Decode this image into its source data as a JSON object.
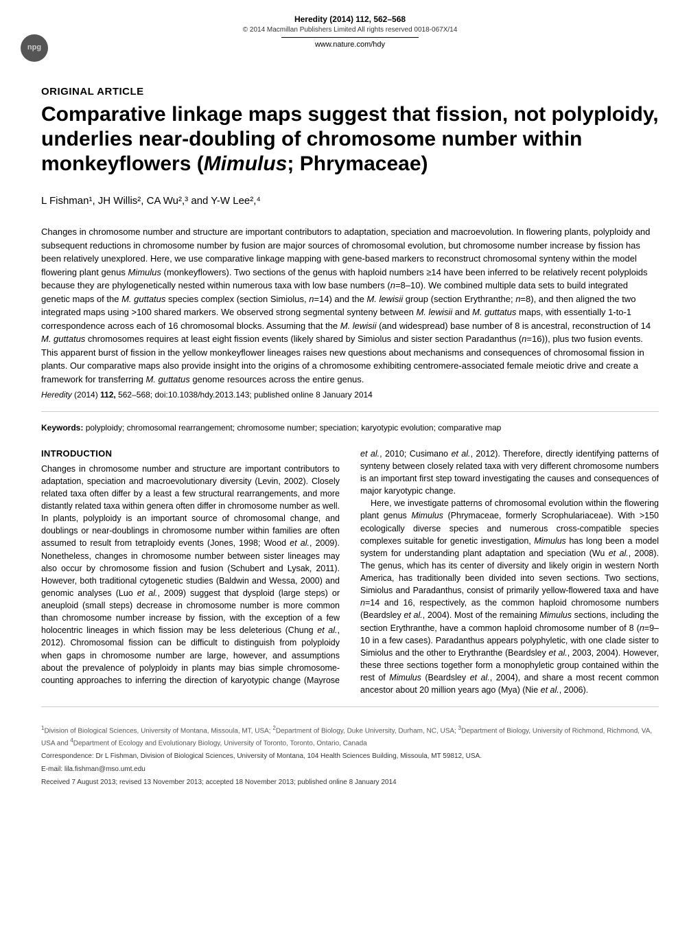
{
  "header": {
    "journal_ref": "Heredity (2014) 112, 562–568",
    "copyright": "© 2014 Macmillan Publishers Limited   All rights reserved 0018-067X/14",
    "website": "www.nature.com/hdy",
    "badge": "npg"
  },
  "article": {
    "type": "ORIGINAL ARTICLE",
    "title_html": "Comparative linkage maps suggest that fission, not polyploidy, underlies near-doubling of chromosome number within monkeyflowers (<em>Mimulus</em>; Phrymaceae)",
    "authors": "L Fishman¹, JH Willis², CA Wu²,³ and Y-W Lee²,⁴",
    "abstract_html": "Changes in chromosome number and structure are important contributors to adaptation, speciation and macroevolution. In flowering plants, polyploidy and subsequent reductions in chromosome number by fusion are major sources of chromosomal evolution, but chromosome number increase by fission has been relatively unexplored. Here, we use comparative linkage mapping with gene-based markers to reconstruct chromosomal synteny within the model flowering plant genus <em>Mimulus</em> (monkeyflowers). Two sections of the genus with haploid numbers ≥14 have been inferred to be relatively recent polyploids because they are phylogenetically nested within numerous taxa with low base numbers (<em>n</em>=8–10). We combined multiple data sets to build integrated genetic maps of the <em>M. guttatus</em> species complex (section Simiolus, <em>n</em>=14) and the <em>M. lewisii</em> group (section Erythranthe; <em>n</em>=8), and then aligned the two integrated maps using >100 shared markers. We observed strong segmental synteny between <em>M. lewisii</em> and <em>M. guttatus</em> maps, with essentially 1-to-1 correspondence across each of 16 chromosomal blocks. Assuming that the <em>M. lewisii</em> (and widespread) base number of 8 is ancestral, reconstruction of 14 <em>M. guttatus</em> chromosomes requires at least eight fission events (likely shared by Simiolus and sister section Paradanthus (<em>n</em>=16)), plus two fusion events. This apparent burst of fission in the yellow monkeyflower lineages raises new questions about mechanisms and consequences of chromosomal fission in plants. Our comparative maps also provide insight into the origins of a chromosome exhibiting centromere-associated female meiotic drive and create a framework for transferring <em>M. guttatus</em> genome resources across the entire genus.",
    "citation_html": "<em>Heredity</em> (2014) <strong>112,</strong> 562–568; doi:10.1038/hdy.2013.143; published online 8 January 2014",
    "keywords_label": "Keywords:",
    "keywords": " polyploidy; chromosomal rearrangement; chromosome number; speciation; karyotypic evolution; comparative map"
  },
  "introduction": {
    "heading": "INTRODUCTION",
    "p1_html": "Changes in chromosome number and structure are important contributors to adaptation, speciation and macroevolutionary diversity (Levin, 2002). Closely related taxa often differ by a least a few structural rearrangements, and more distantly related taxa within genera often differ in chromosome number as well. In plants, polyploidy is an important source of chromosomal change, and doublings or near-doublings in chromosome number within families are often assumed to result from tetraploidy events (Jones, 1998; Wood <em>et al.</em>, 2009). Nonetheless, changes in chromosome number between sister lineages may also occur by chromosome fission and fusion (Schubert and Lysak, 2011). However, both traditional cytogenetic studies (Baldwin and Wessa, 2000) and genomic analyses (Luo <em>et al.</em>, 2009) suggest that dysploid (large steps) or aneuploid (small steps) decrease in chromosome number is more common than chromosome number increase by fission, with the exception of a few holocentric lineages in which fission may be less deleterious (Chung <em>et al.</em>, 2012). Chromosomal fission can be difficult to distinguish from polyploidy when gaps in chromosome number are large, however, and assumptions about the prevalence of polyploidy in plants may bias simple chromosome-counting approaches to inferring the direction of karyotypic change (Mayrose <em>et al.</em>, 2010; Cusimano <em>et al.</em>, 2012). Therefore, directly identifying patterns of synteny between closely related taxa with very different chromosome numbers is an important first step toward investigating the causes and consequences of major karyotypic change.",
    "p2_html": "Here, we investigate patterns of chromosomal evolution within the flowering plant genus <em>Mimulus</em> (Phrymaceae, formerly Scrophulariaceae). With >150 ecologically diverse species and numerous cross-compatible species complexes suitable for genetic investigation, <em>Mimulus</em> has long been a model system for understanding plant adaptation and speciation (Wu <em>et al.</em>, 2008). The genus, which has its center of diversity and likely origin in western North America, has traditionally been divided into seven sections. Two sections, Simiolus and Paradanthus, consist of primarily yellow-flowered taxa and have <em>n</em>=14 and 16, respectively, as the common haploid chromosome numbers (Beardsley <em>et al.</em>, 2004). Most of the remaining <em>Mimulus</em> sections, including the section Erythranthe, have a common haploid chromosome number of 8 (<em>n</em>=9–10 in a few cases). Paradanthus appears polyphyletic, with one clade sister to Simiolus and the other to Erythranthe (Beardsley <em>et al.</em>, 2003, 2004). However, these three sections together form a monophyletic group contained within the rest of <em>Mimulus</em> (Beardsley <em>et al.</em>, 2004), and share a most recent common ancestor about 20 million years ago (Mya) (Nie <em>et al.</em>, 2006)."
  },
  "footer": {
    "affiliations_html": "<sup>1</sup>Division of Biological Sciences, University of Montana, Missoula, MT, USA; <sup>2</sup>Department of Biology, Duke University, Durham, NC, USA; <sup>3</sup>Department of Biology, University of Richmond, Richmond, VA, USA and <sup>4</sup>Department of Ecology and Evolutionary Biology, University of Toronto, Toronto, Ontario, Canada",
    "correspondence": "Correspondence: Dr L Fishman, Division of Biological Sciences, University of Montana, 104 Health Sciences Building, Missoula, MT 59812, USA.",
    "email": "E-mail: lila.fishman@mso.umt.edu",
    "received": "Received 7 August 2013; revised 13 November 2013; accepted 18 November 2013; published online 8 January 2014"
  }
}
